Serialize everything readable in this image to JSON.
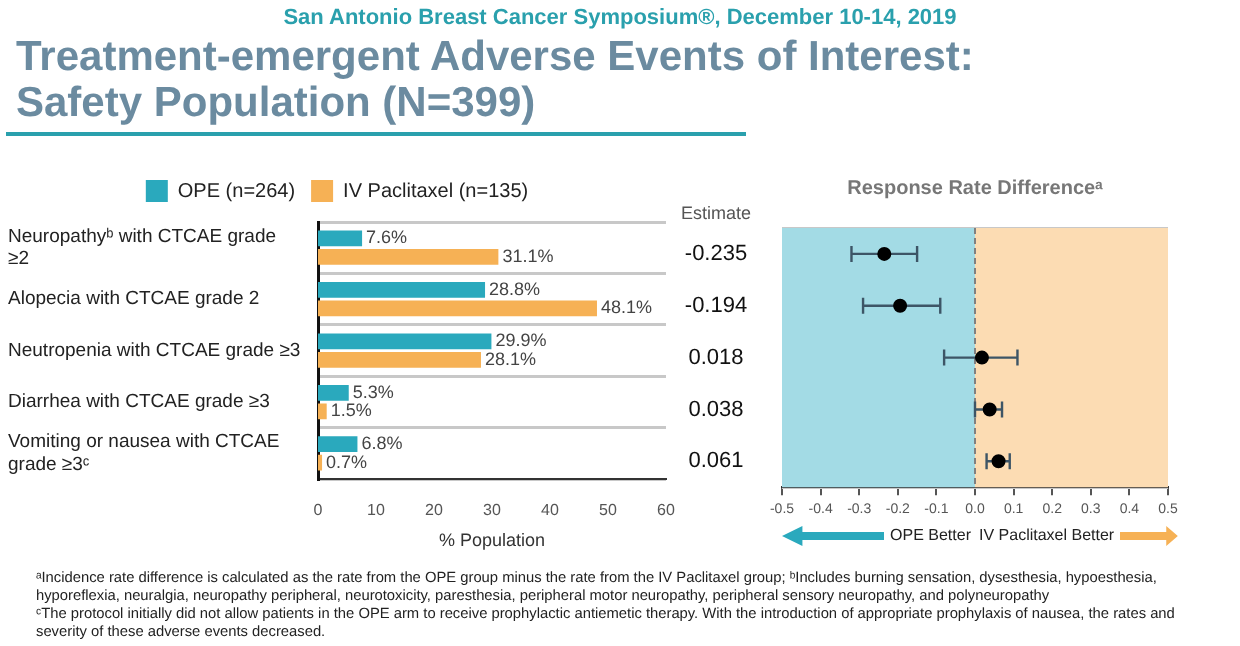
{
  "chart_data": [
    {
      "type": "bar",
      "orientation": "horizontal",
      "title": "Treatment-emergent Adverse Events of Interest: Safety Population (N=399)",
      "subtitle": "San Antonio Breast Cancer Symposium®, December 10-14, 2019",
      "categories": [
        "Neuropathyᵇ with CTCAE grade ≥2",
        "Alopecia with CTCAE grade 2",
        "Neutropenia with CTCAE grade ≥3",
        "Diarrhea with CTCAE grade ≥3",
        "Vomiting or nausea with CTCAE grade ≥3ᶜ"
      ],
      "series": [
        {
          "name": "OPE (n=264)",
          "color": "#2aa9bd",
          "values": [
            7.6,
            28.8,
            29.9,
            5.3,
            6.8
          ],
          "value_labels": [
            "7.6%",
            "28.8%",
            "29.9%",
            "5.3%",
            "6.8%"
          ]
        },
        {
          "name": "IV Paclitaxel (n=135)",
          "color": "#f6b155",
          "values": [
            31.1,
            48.1,
            28.1,
            1.5,
            0.7
          ],
          "value_labels": [
            "31.1%",
            "48.1%",
            "28.1%",
            "1.5%",
            "0.7%"
          ]
        }
      ],
      "xlim": [
        0,
        60
      ],
      "xticks": [
        0,
        10,
        20,
        30,
        40,
        50,
        60
      ],
      "xlabel": "% Population",
      "legend": "top",
      "grid": "y",
      "annotations": [
        "ᵃIncidence rate difference is calculated as the rate from the OPE group minus the rate from the IV Paclitaxel group; ᵇIncludes burning sensation, dysesthesia, hypoesthesia, hyporeflexia, neuralgia, neuropathy peripheral, neurotoxicity, paresthesia, peripheral motor neuropathy, peripheral sensory neuropathy, and polyneuropathy",
        "ᶜThe protocol initially did not allow patients in the OPE arm to receive prophylactic antiemetic therapy. With the introduction of appropriate prophylaxis of nausea, the rates and severity of these adverse events decreased."
      ]
    },
    {
      "type": "scatter",
      "orientation": "horizontal",
      "title": "Response Rate Differenceᵃ",
      "categories": [
        null,
        null,
        null,
        null,
        null
      ],
      "values": [
        -0.235,
        -0.194,
        0.018,
        0.038,
        0.061
      ],
      "errors": [
        [
          -0.32,
          -0.15
        ],
        [
          -0.29,
          -0.09
        ],
        [
          -0.08,
          0.11
        ],
        [
          0.0,
          0.07
        ],
        [
          0.03,
          0.09
        ]
      ],
      "color": "#000000",
      "marker": "circle",
      "data_labels": true,
      "xlim": [
        -0.5,
        0.5
      ],
      "xticks": [
        -0.5,
        -0.4,
        -0.3,
        -0.2,
        -0.1,
        {
          "value": 0,
          "label": "0.0"
        },
        0.1,
        0.2,
        0.3,
        0.4,
        0.5
      ],
      "grid": "y",
      "ref_lines": [
        {
          "axis": "x",
          "value": 0,
          "line_style": "dashed",
          "color": "#808080"
        }
      ],
      "bands": [
        {
          "axis": "x",
          "from": -0.5,
          "to": 0,
          "label": "OPE Better",
          "color": "#a3dbe5"
        },
        {
          "axis": "x",
          "from": 0,
          "to": 0.5,
          "label": "IV Paclitaxel Better",
          "color": "#fcdcb3"
        }
      ],
      "annotations": [
        "Estimate"
      ]
    }
  ]
}
